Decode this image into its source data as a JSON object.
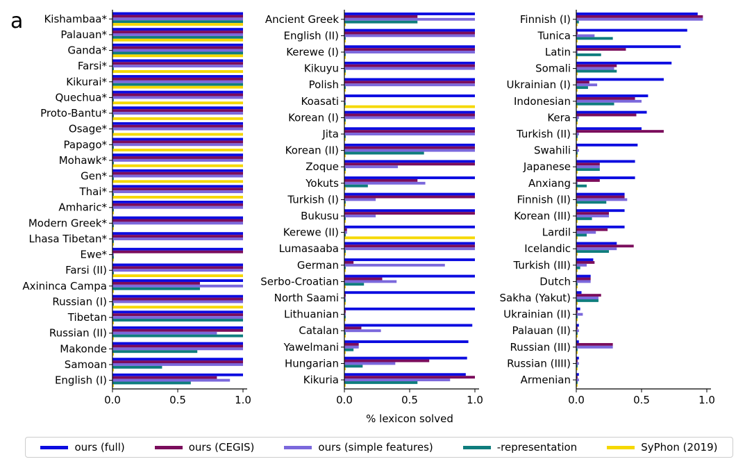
{
  "panel_label": "a",
  "colors": {
    "ours_full": "#0c0ce0",
    "ours_cegis": "#7b0d5c",
    "ours_simple": "#7b68dc",
    "representation": "#0f7d7d",
    "syphon": "#f5d800"
  },
  "chart_data": [
    {
      "type": "bar",
      "orientation": "horizontal",
      "xlim": [
        0,
        1
      ],
      "x_ticks": [
        "0.0",
        "0.5",
        "1.0"
      ],
      "xlabel": "",
      "categories": [
        "Kishambaa*",
        "Palauan*",
        "Ganda*",
        "Farsi*",
        "Kikurai*",
        "Quechua*",
        "Proto-Bantu*",
        "Osage*",
        "Papago*",
        "Mohawk*",
        "Gen*",
        "Thai*",
        "Amharic*",
        "Modern Greek*",
        "Lhasa Tibetan*",
        "Ewe*",
        "Farsi (II)",
        "Axininca Campa",
        "Russian (I)",
        "Tibetan",
        "Russian (II)",
        "Makonde",
        "Samoan",
        "English (I)"
      ],
      "series": [
        {
          "name": "ours (full)",
          "values": [
            1,
            1,
            1,
            1,
            1,
            1,
            1,
            1,
            1,
            1,
            1,
            1,
            1,
            1,
            1,
            1,
            1,
            1,
            1,
            1,
            1,
            1,
            1,
            1
          ]
        },
        {
          "name": "ours (CEGIS)",
          "values": [
            1,
            1,
            1,
            1,
            1,
            1,
            1,
            1,
            1,
            1,
            1,
            1,
            1,
            1,
            1,
            1,
            1,
            0.67,
            1,
            1,
            1,
            1,
            1,
            0.8
          ]
        },
        {
          "name": "ours (simple features)",
          "values": [
            1,
            1,
            1,
            1,
            1,
            1,
            1,
            1,
            1,
            1,
            1,
            1,
            1,
            1,
            1,
            0.01,
            1,
            1,
            1,
            1,
            0.8,
            1,
            1,
            0.9
          ]
        },
        {
          "name": "-representation",
          "values": [
            1,
            1,
            1,
            0.01,
            1,
            0.01,
            0.01,
            0.01,
            0.01,
            0.01,
            0.01,
            0.01,
            0.01,
            0.01,
            0.01,
            0.01,
            0.01,
            0.67,
            0.01,
            1,
            1,
            0.65,
            0.38,
            0.6
          ]
        },
        {
          "name": "SyPhon (2019)",
          "values": [
            1,
            1,
            1,
            1,
            1,
            1,
            1,
            1,
            1,
            1,
            1,
            1,
            0.01,
            0.01,
            0.01,
            0.01,
            1,
            0.01,
            1,
            0.01,
            0.01,
            0.01,
            0.01,
            0.01
          ]
        }
      ]
    },
    {
      "type": "bar",
      "orientation": "horizontal",
      "xlim": [
        0,
        1
      ],
      "x_ticks": [
        "0.0",
        "0.5",
        "1.0"
      ],
      "xlabel": "% lexicon solved",
      "categories": [
        "Ancient Greek",
        "English (II)",
        "Kerewe (I)",
        "Kikuyu",
        "Polish",
        "Koasati",
        "Korean (I)",
        "Jita",
        "Korean (II)",
        "Zoque",
        "Yokuts",
        "Turkish (I)",
        "Bukusu",
        "Kerewe (II)",
        "Lumasaaba",
        "German",
        "Serbo-Croatian",
        "North Saami",
        "Lithuanian",
        "Catalan",
        "Yawelmani",
        "Hungarian",
        "Kikuria"
      ],
      "series": [
        {
          "name": "ours (full)",
          "values": [
            1,
            1,
            1,
            1,
            1,
            1,
            1,
            1,
            1,
            1,
            1,
            1,
            1,
            1,
            1,
            1,
            1,
            1,
            1,
            0.98,
            0.95,
            0.94,
            0.93
          ]
        },
        {
          "name": "ours (CEGIS)",
          "values": [
            0.56,
            1,
            1,
            1,
            1,
            0.01,
            1,
            1,
            1,
            1,
            0.56,
            1,
            1,
            0.02,
            1,
            0.07,
            0.29,
            0.01,
            0.01,
            0.13,
            0.11,
            0.65,
            1
          ]
        },
        {
          "name": "ours (simple features)",
          "values": [
            1,
            1,
            1,
            1,
            1,
            0.01,
            1,
            1,
            1,
            0.41,
            0.62,
            0.24,
            0.24,
            0.02,
            1,
            0.77,
            0.4,
            0.01,
            0.01,
            0.28,
            0.11,
            0.39,
            0.81
          ]
        },
        {
          "name": "-representation",
          "values": [
            0.56,
            0.01,
            0.01,
            0.01,
            0.01,
            0.01,
            0.01,
            0.01,
            0.61,
            0.01,
            0.18,
            0.01,
            0.01,
            0.01,
            0.01,
            0.01,
            0.15,
            0.01,
            0.01,
            0.01,
            0.07,
            0.14,
            0.56
          ]
        },
        {
          "name": "SyPhon (2019)",
          "values": [
            0.01,
            0.01,
            0.01,
            0.01,
            0.01,
            1,
            0.01,
            0.01,
            0.01,
            0.01,
            0.01,
            0.01,
            0.01,
            1,
            0.01,
            0.01,
            0.01,
            0.01,
            0.01,
            0.01,
            0.01,
            0.01,
            0.01
          ]
        }
      ]
    },
    {
      "type": "bar",
      "orientation": "horizontal",
      "xlim": [
        0,
        1
      ],
      "x_ticks": [
        "0.0",
        "0.5",
        "1.0"
      ],
      "xlabel": "",
      "categories": [
        "Finnish (I)",
        "Tunica",
        "Latin",
        "Somali",
        "Ukrainian (I)",
        "Indonesian",
        "Kera",
        "Turkish (II)",
        "Swahili",
        "Japanese",
        "Anxiang",
        "Finnish (II)",
        "Korean (III)",
        "Lardil",
        "Icelandic",
        "Turkish (III)",
        "Dutch",
        "Sakha (Yakut)",
        "Ukrainian (II)",
        "Palauan (II)",
        "Russian (III)",
        "Russian (IIII)",
        "Armenian"
      ],
      "series": [
        {
          "name": "ours (full)",
          "values": [
            0.93,
            0.85,
            0.8,
            0.73,
            0.67,
            0.55,
            0.54,
            0.5,
            0.47,
            0.45,
            0.45,
            0.37,
            0.37,
            0.37,
            0.31,
            0.13,
            0.11,
            0.04,
            0.03,
            0.02,
            0.02,
            0.02,
            0.02
          ]
        },
        {
          "name": "ours (CEGIS)",
          "values": [
            0.97,
            0.01,
            0.38,
            0.31,
            0.1,
            0.45,
            0.46,
            0.67,
            0.01,
            0.18,
            0.18,
            0.37,
            0.25,
            0.24,
            0.44,
            0.14,
            0.11,
            0.19,
            0.01,
            0.01,
            0.28,
            0.01,
            0.01
          ]
        },
        {
          "name": "ours (simple features)",
          "values": [
            0.97,
            0.14,
            0.01,
            0.29,
            0.16,
            0.5,
            0.02,
            0.02,
            0.02,
            0.18,
            0.01,
            0.39,
            0.25,
            0.15,
            0.31,
            0.08,
            0.11,
            0.17,
            0.05,
            0.02,
            0.28,
            0.02,
            0.02
          ]
        },
        {
          "name": "-representation",
          "values": [
            0.02,
            0.28,
            0.19,
            0.31,
            0.09,
            0.29,
            0.01,
            0.01,
            0.01,
            0.18,
            0.08,
            0.23,
            0.12,
            0.08,
            0.25,
            0.03,
            0.01,
            0.17,
            0.01,
            0.01,
            0.01,
            0.01,
            0.01
          ]
        },
        {
          "name": "SyPhon (2019)",
          "values": [
            0.01,
            0.01,
            0.01,
            0.01,
            0.01,
            0.01,
            0.01,
            0.01,
            0.01,
            0.01,
            0.01,
            0.01,
            0.01,
            0.01,
            0.01,
            0.01,
            0.01,
            0.01,
            0.01,
            0.01,
            0.01,
            0.01,
            0.01
          ]
        }
      ]
    }
  ],
  "legend": [
    {
      "label": "ours (full)",
      "color": "#0c0ce0"
    },
    {
      "label": "ours (CEGIS)",
      "color": "#7b0d5c"
    },
    {
      "label": "ours (simple features)",
      "color": "#7b68dc"
    },
    {
      "label": "-representation",
      "color": "#0f7d7d"
    },
    {
      "label": "SyPhon (2019)",
      "color": "#f5d800"
    }
  ]
}
